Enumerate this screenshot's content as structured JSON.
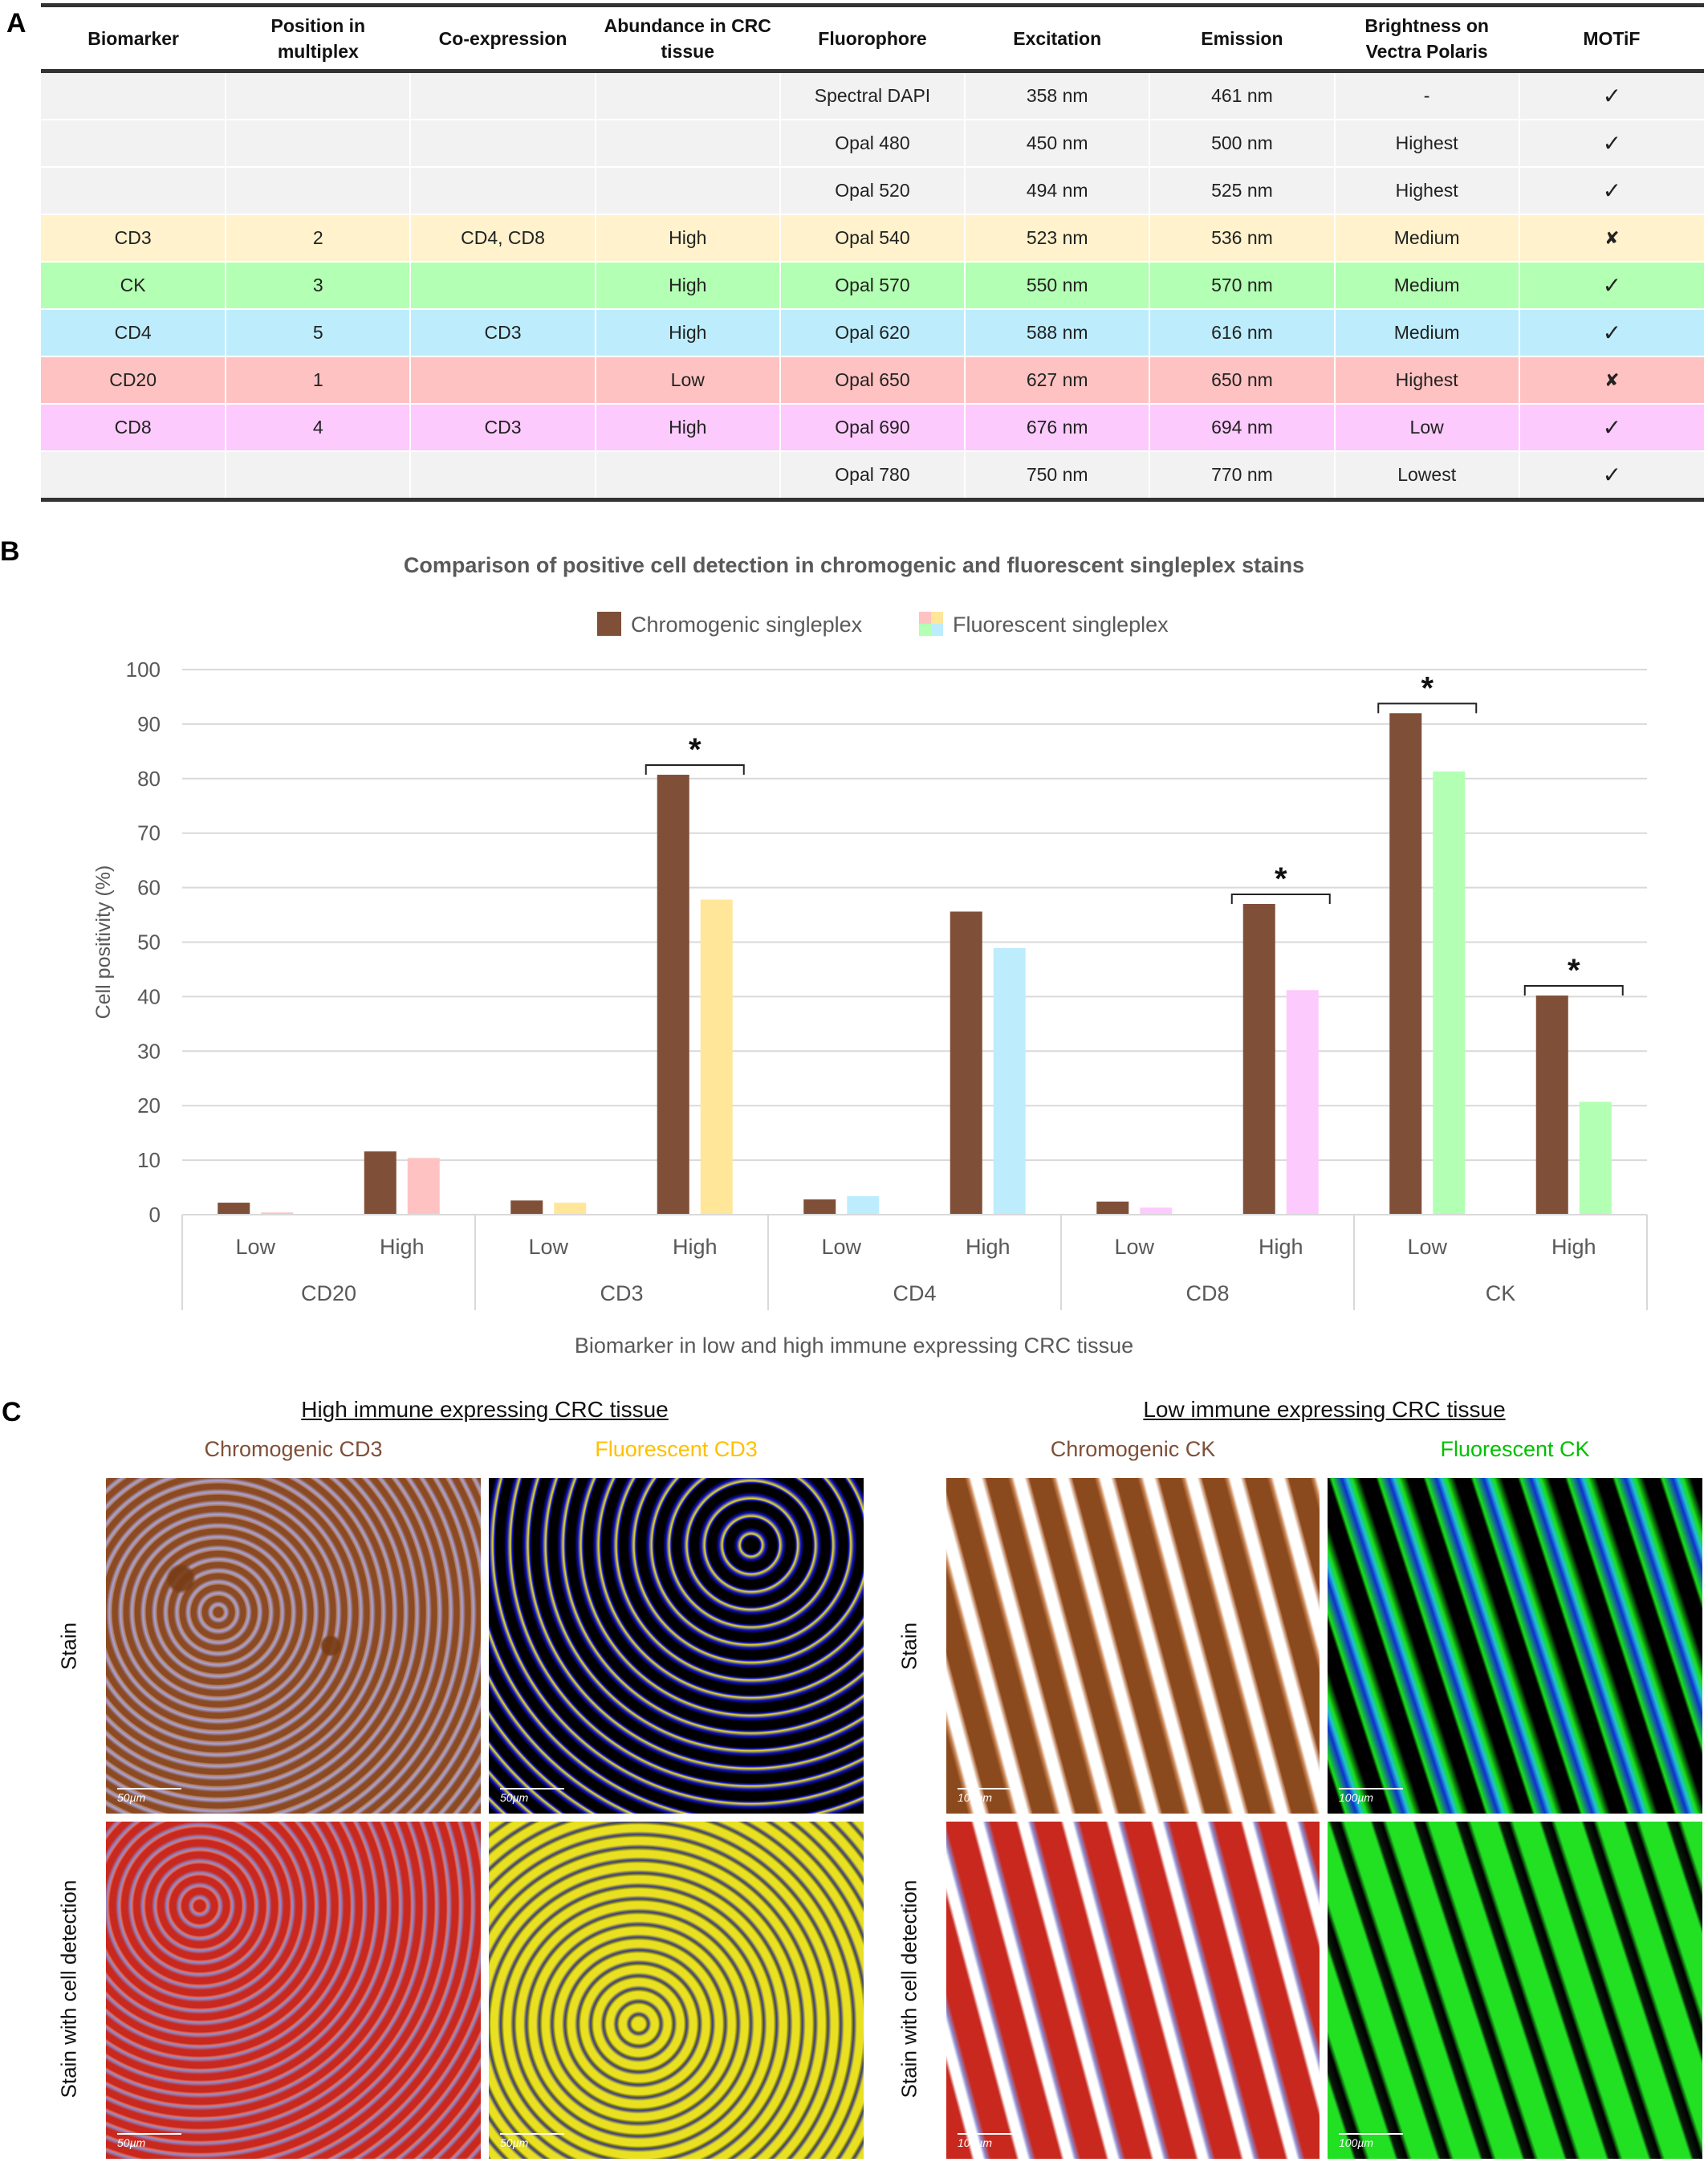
{
  "panels": {
    "a": "A",
    "b": "B",
    "c": "C"
  },
  "table": {
    "headers": [
      "Biomarker",
      "Position in multiplex",
      "Co-expression",
      "Abundance in CRC tissue",
      "Fluorophore",
      "Excitation",
      "Emission",
      "Brightness on Vectra Polaris",
      "MOTiF"
    ],
    "rows": [
      {
        "biomarker": "",
        "position": "",
        "coexpression": "",
        "abundance": "",
        "fluorophore": "Spectral DAPI",
        "excitation": "358 nm",
        "emission": "461 nm",
        "brightness": "-",
        "motif": "✓",
        "color": "#f2f2f2"
      },
      {
        "biomarker": "",
        "position": "",
        "coexpression": "",
        "abundance": "",
        "fluorophore": "Opal 480",
        "excitation": "450 nm",
        "emission": "500 nm",
        "brightness": "Highest",
        "motif": "✓",
        "color": "#f2f2f2"
      },
      {
        "biomarker": "",
        "position": "",
        "coexpression": "",
        "abundance": "",
        "fluorophore": "Opal 520",
        "excitation": "494 nm",
        "emission": "525 nm",
        "brightness": "Highest",
        "motif": "✓",
        "color": "#f2f2f2"
      },
      {
        "biomarker": "CD3",
        "position": "2",
        "coexpression": "CD4, CD8",
        "abundance": "High",
        "fluorophore": "Opal 540",
        "excitation": "523 nm",
        "emission": "536 nm",
        "brightness": "Medium",
        "motif": "✘",
        "color": "#fff2cc"
      },
      {
        "biomarker": "CK",
        "position": "3",
        "coexpression": "",
        "abundance": "High",
        "fluorophore": "Opal 570",
        "excitation": "550 nm",
        "emission": "570 nm",
        "brightness": "Medium",
        "motif": "✓",
        "color": "#b3ffb3"
      },
      {
        "biomarker": "CD4",
        "position": "5",
        "coexpression": "CD3",
        "abundance": "High",
        "fluorophore": "Opal 620",
        "excitation": "588 nm",
        "emission": "616 nm",
        "brightness": "Medium",
        "motif": "✓",
        "color": "#bdedfd"
      },
      {
        "biomarker": "CD20",
        "position": "1",
        "coexpression": "",
        "abundance": "Low",
        "fluorophore": "Opal 650",
        "excitation": "627 nm",
        "emission": "650 nm",
        "brightness": "Highest",
        "motif": "✘",
        "color": "#ffc2c2"
      },
      {
        "biomarker": "CD8",
        "position": "4",
        "coexpression": "CD3",
        "abundance": "High",
        "fluorophore": "Opal 690",
        "excitation": "676 nm",
        "emission": "694 nm",
        "brightness": "Low",
        "motif": "✓",
        "color": "#fdcafd"
      },
      {
        "biomarker": "",
        "position": "",
        "coexpression": "",
        "abundance": "",
        "fluorophore": "Opal 780",
        "excitation": "750 nm",
        "emission": "770 nm",
        "brightness": "Lowest",
        "motif": "✓",
        "color": "#f2f2f2"
      }
    ]
  },
  "chart_data": {
    "type": "bar",
    "title": "Comparison of positive cell detection in chromogenic and fluorescent singleplex stains",
    "xlabel": "Biomarker in low and high immune expressing CRC tissue",
    "ylabel": "Cell positivity (%)",
    "ylim": [
      0,
      100
    ],
    "yticks": [
      0,
      10,
      20,
      30,
      40,
      50,
      60,
      70,
      80,
      90,
      100
    ],
    "grid": true,
    "legend_position": "top-center",
    "groups": [
      "CD20",
      "CD3",
      "CD4",
      "CD8",
      "CK"
    ],
    "categories": [
      "Low",
      "High",
      "Low",
      "High",
      "Low",
      "High",
      "Low",
      "High",
      "Low",
      "High"
    ],
    "series": [
      {
        "name": "Chromogenic singleplex",
        "color": "#7f4f38",
        "values": [
          2.2,
          11.6,
          2.6,
          80.7,
          2.8,
          55.6,
          2.4,
          57.0,
          92.0,
          40.2
        ]
      },
      {
        "name": "Fluorescent singleplex",
        "legend_colors": [
          "#ffc2c2",
          "#ffe699",
          "#b3ffb3",
          "#bdedfd"
        ],
        "colors": [
          "#ffc2c2",
          "#ffc2c2",
          "#ffe699",
          "#ffe699",
          "#bdedfd",
          "#bdedfd",
          "#fdcafd",
          "#fdcafd",
          "#b3ffb3",
          "#b3ffb3"
        ],
        "values": [
          0.4,
          10.4,
          2.2,
          57.8,
          3.4,
          48.9,
          1.3,
          41.2,
          81.3,
          20.7
        ]
      }
    ],
    "significance": [
      {
        "group": "CD3",
        "level": "High",
        "label": "*"
      },
      {
        "group": "CD8",
        "level": "High",
        "label": "*"
      },
      {
        "group": "CK",
        "level": "Low",
        "label": "*"
      },
      {
        "group": "CK",
        "level": "High",
        "label": "*"
      }
    ]
  },
  "panel_c": {
    "left_heading": "High immune expressing CRC tissue",
    "right_heading": "Low immune expressing CRC tissue",
    "columns": [
      {
        "label": "Chromogenic CD3",
        "color": "#7f4f38"
      },
      {
        "label": "Fluorescent CD3",
        "color": "#ffc000"
      },
      {
        "label": "Chromogenic CK",
        "color": "#7f4f38"
      },
      {
        "label": "Fluorescent CK",
        "color": "#00c000"
      }
    ],
    "row_labels": [
      "Stain",
      "Stain with cell detection"
    ],
    "scale_bars": {
      "cd3": "50µm",
      "ck": "100µm"
    }
  }
}
